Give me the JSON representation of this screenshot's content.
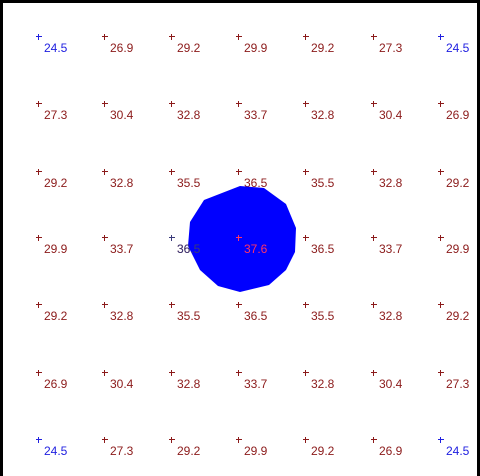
{
  "grid": {
    "rows": [
      [
        "24.5",
        "26.9",
        "29.2",
        "29.9",
        "29.2",
        "27.3",
        "24.5"
      ],
      [
        "27.3",
        "30.4",
        "32.8",
        "33.7",
        "32.8",
        "30.4",
        "26.9"
      ],
      [
        "29.2",
        "32.8",
        "35.5",
        "36.5",
        "35.5",
        "32.8",
        "29.2"
      ],
      [
        "29.9",
        "33.7",
        "36.5",
        "37.6",
        "36.5",
        "33.7",
        "29.9"
      ],
      [
        "29.2",
        "32.8",
        "35.5",
        "36.5",
        "35.5",
        "32.8",
        "29.2"
      ],
      [
        "26.9",
        "30.4",
        "32.8",
        "33.7",
        "32.8",
        "30.4",
        "27.3"
      ],
      [
        "24.5",
        "27.3",
        "29.2",
        "29.9",
        "29.2",
        "26.9",
        "24.5"
      ]
    ],
    "colors": {
      "value_text": "#8b1a1a",
      "corner_text": "#2020e0",
      "blob": "#0000ff",
      "center_text": "#ff3366",
      "frame": "#000000"
    }
  },
  "blob": {
    "color": "#0000ff"
  }
}
